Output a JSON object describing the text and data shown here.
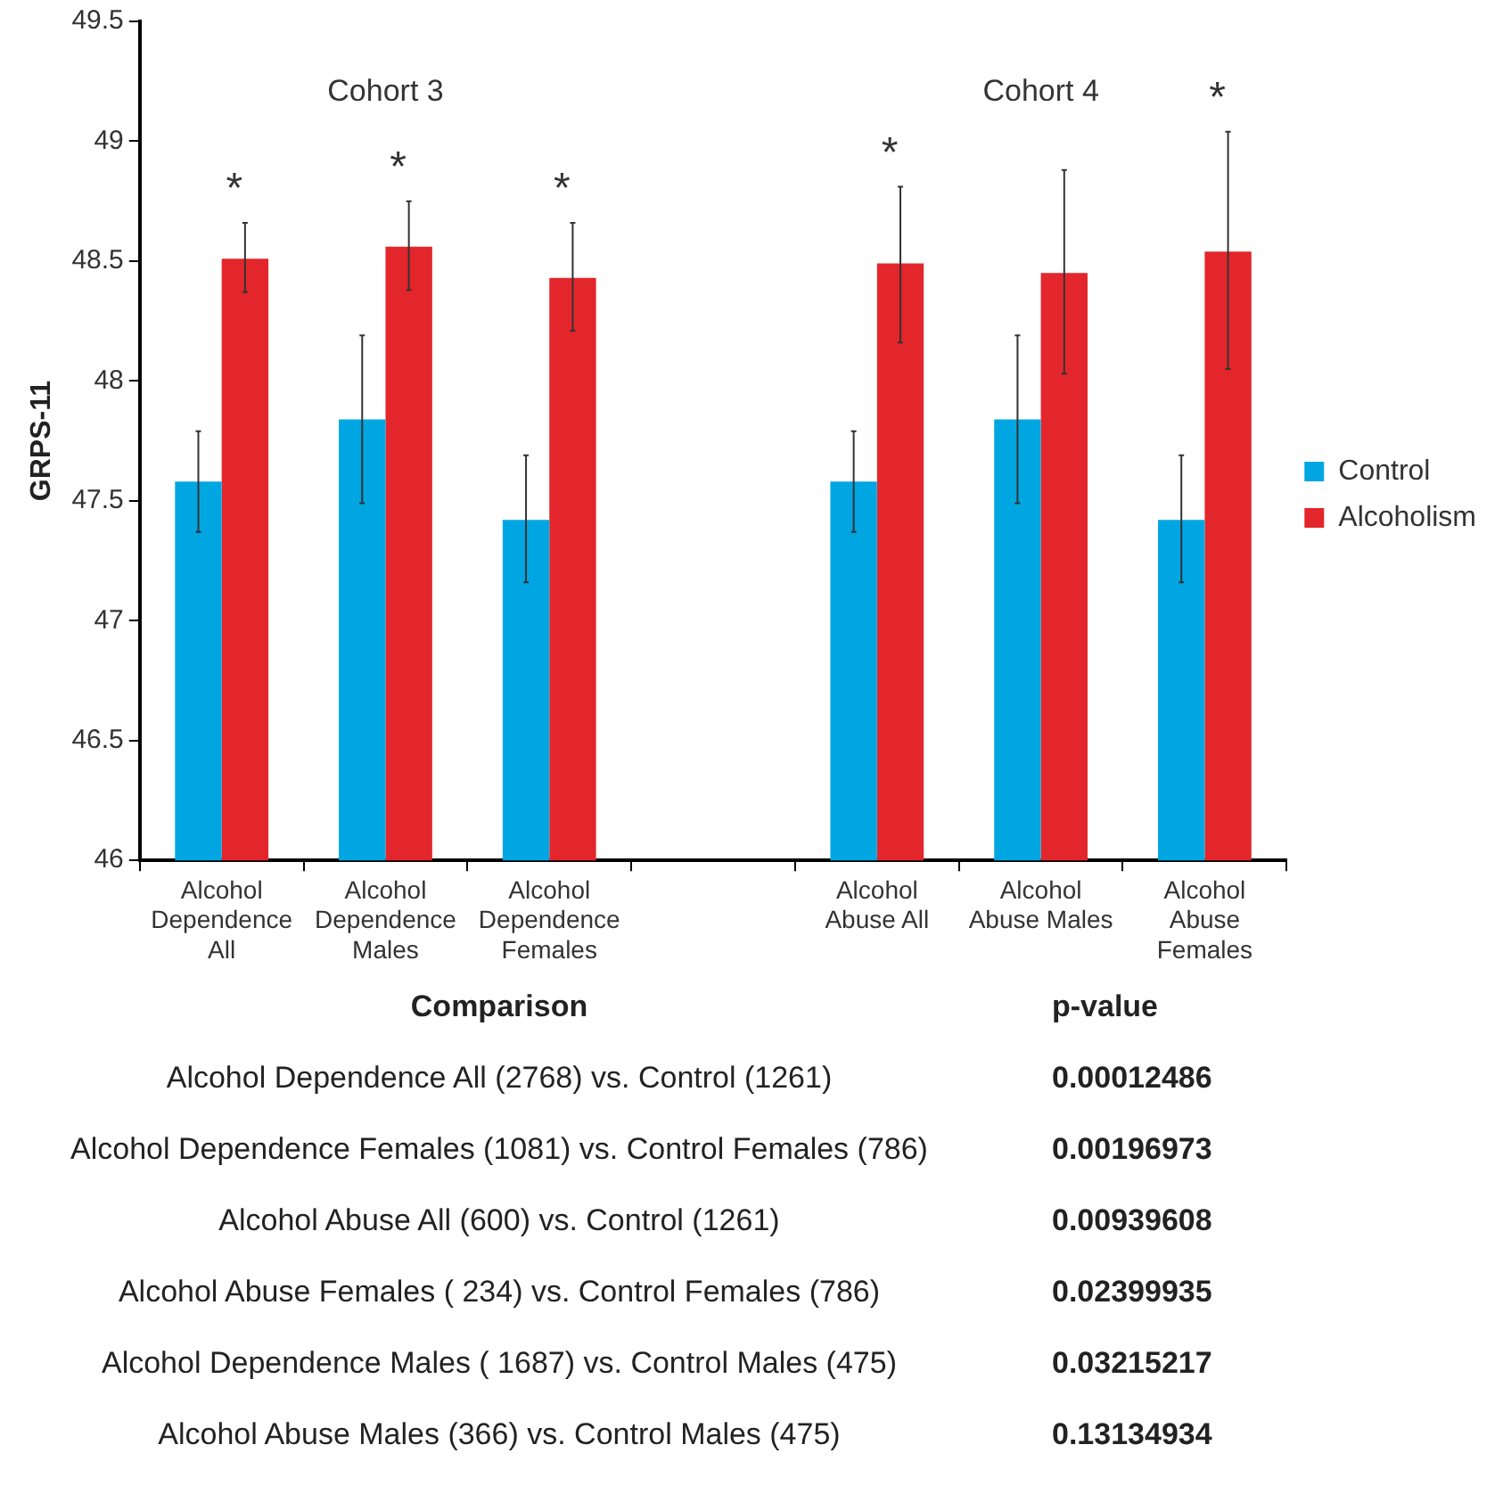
{
  "chart_data": {
    "type": "bar",
    "ylabel": "GRPS-11",
    "categories": [
      "Alcohol Dependence All",
      "Alcohol Dependence Males",
      "Alcohol Dependence Females",
      null,
      "Alcohol Abuse All",
      "Alcohol Abuse Males",
      "Alcohol Abuse Females"
    ],
    "series": [
      {
        "name": "Control",
        "color": "#00a6e2",
        "values": [
          47.58,
          47.84,
          47.42,
          null,
          47.58,
          47.84,
          47.42
        ],
        "errors": [
          [
            47.37,
            47.79
          ],
          [
            47.49,
            48.19
          ],
          [
            47.16,
            47.69
          ],
          null,
          [
            47.37,
            47.79
          ],
          [
            47.49,
            48.19
          ],
          [
            47.16,
            47.69
          ]
        ]
      },
      {
        "name": "Alcoholism",
        "color": "#e3262b",
        "values": [
          48.51,
          48.56,
          48.43,
          null,
          48.49,
          48.45,
          48.54
        ],
        "value_labels": [
          "*",
          "*",
          "*",
          null,
          "*",
          null,
          "*"
        ],
        "errors": [
          [
            48.37,
            48.66
          ],
          [
            48.38,
            48.75
          ],
          [
            48.21,
            48.66
          ],
          null,
          [
            48.16,
            48.81
          ],
          [
            48.03,
            48.88
          ],
          [
            48.05,
            49.04
          ]
        ]
      }
    ],
    "ylim": [
      46,
      49.5
    ],
    "yticks": [
      46,
      46.5,
      47,
      47.5,
      48,
      48.5,
      49,
      49.5
    ],
    "grid": false,
    "legend": "right",
    "annotations": [
      "Cohort 3",
      "Cohort 4",
      "Comparison",
      "p-value",
      "Alcohol Dependence All (2768) vs. Control (1261)",
      "0.00012486",
      "Alcohol Dependence Females (1081) vs. Control Females (786)",
      "0.00196973",
      "Alcohol Abuse All (600) vs. Control (1261)",
      "0.00939608",
      "Alcohol Abuse Females ( 234) vs. Control Females (786)",
      "0.02399935",
      "Alcohol Dependence Males ( 1687) vs. Control Males (475)",
      "0.03215217",
      "Alcohol Abuse Males (366) vs. Control Males (475)",
      "0.13134934"
    ]
  }
}
